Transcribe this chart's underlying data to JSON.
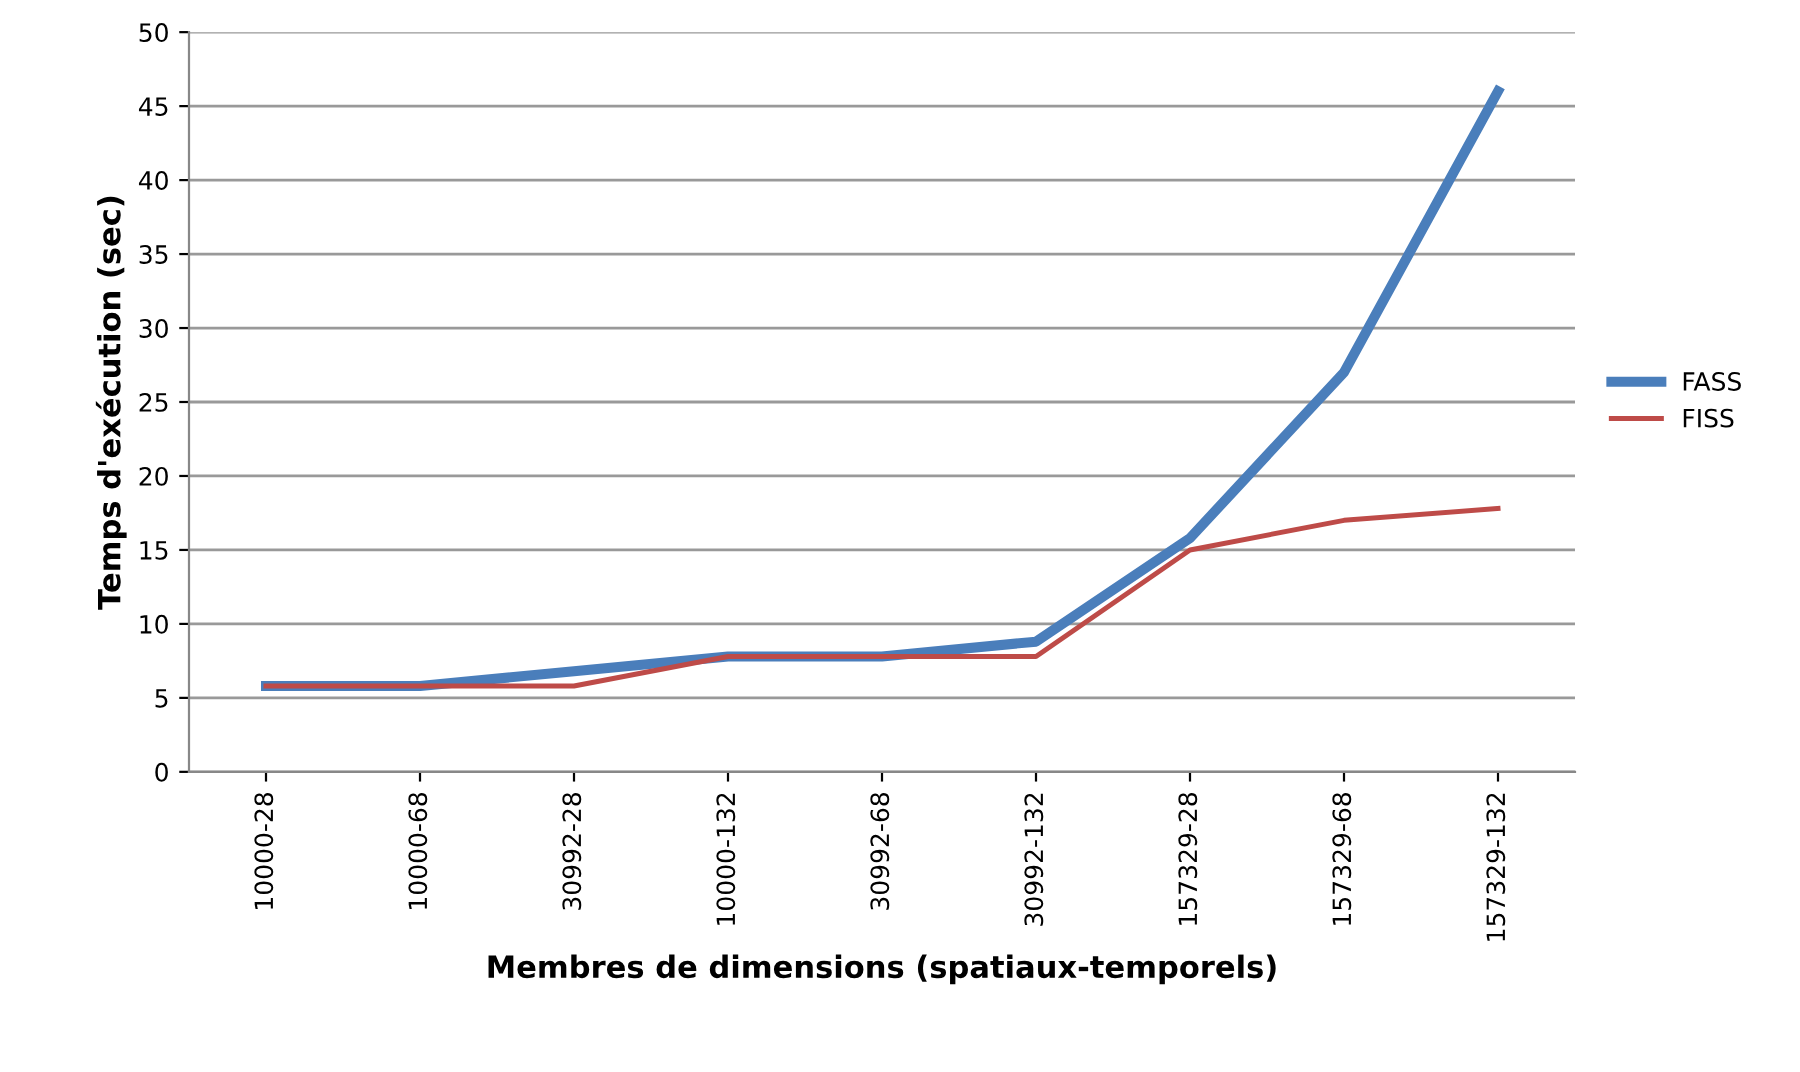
{
  "chart_data": {
    "type": "line",
    "xlabel": "Membres de dimensions (spatiaux-temporels)",
    "ylabel": "Temps d'exécution (sec)",
    "categories": [
      "10000-28",
      "10000-68",
      "30992-28",
      "10000-132",
      "30992-68",
      "30992-132",
      "157329-28",
      "157329-68",
      "157329-132"
    ],
    "series": [
      {
        "name": "FASS",
        "color": "#4a7ebb",
        "values": [
          5.8,
          5.8,
          6.8,
          7.8,
          7.8,
          8.8,
          15.8,
          27,
          46
        ]
      },
      {
        "name": "FISS",
        "color": "#be4b48",
        "values": [
          5.8,
          5.8,
          5.8,
          7.8,
          7.8,
          7.8,
          15,
          17,
          17.8
        ]
      }
    ],
    "ylim": [
      0,
      50
    ],
    "yticks": [
      0,
      5,
      10,
      15,
      20,
      25,
      30,
      35,
      40,
      45,
      50
    ],
    "grid": "y",
    "legend": "right",
    "marker": "none",
    "line_style": "solid"
  }
}
